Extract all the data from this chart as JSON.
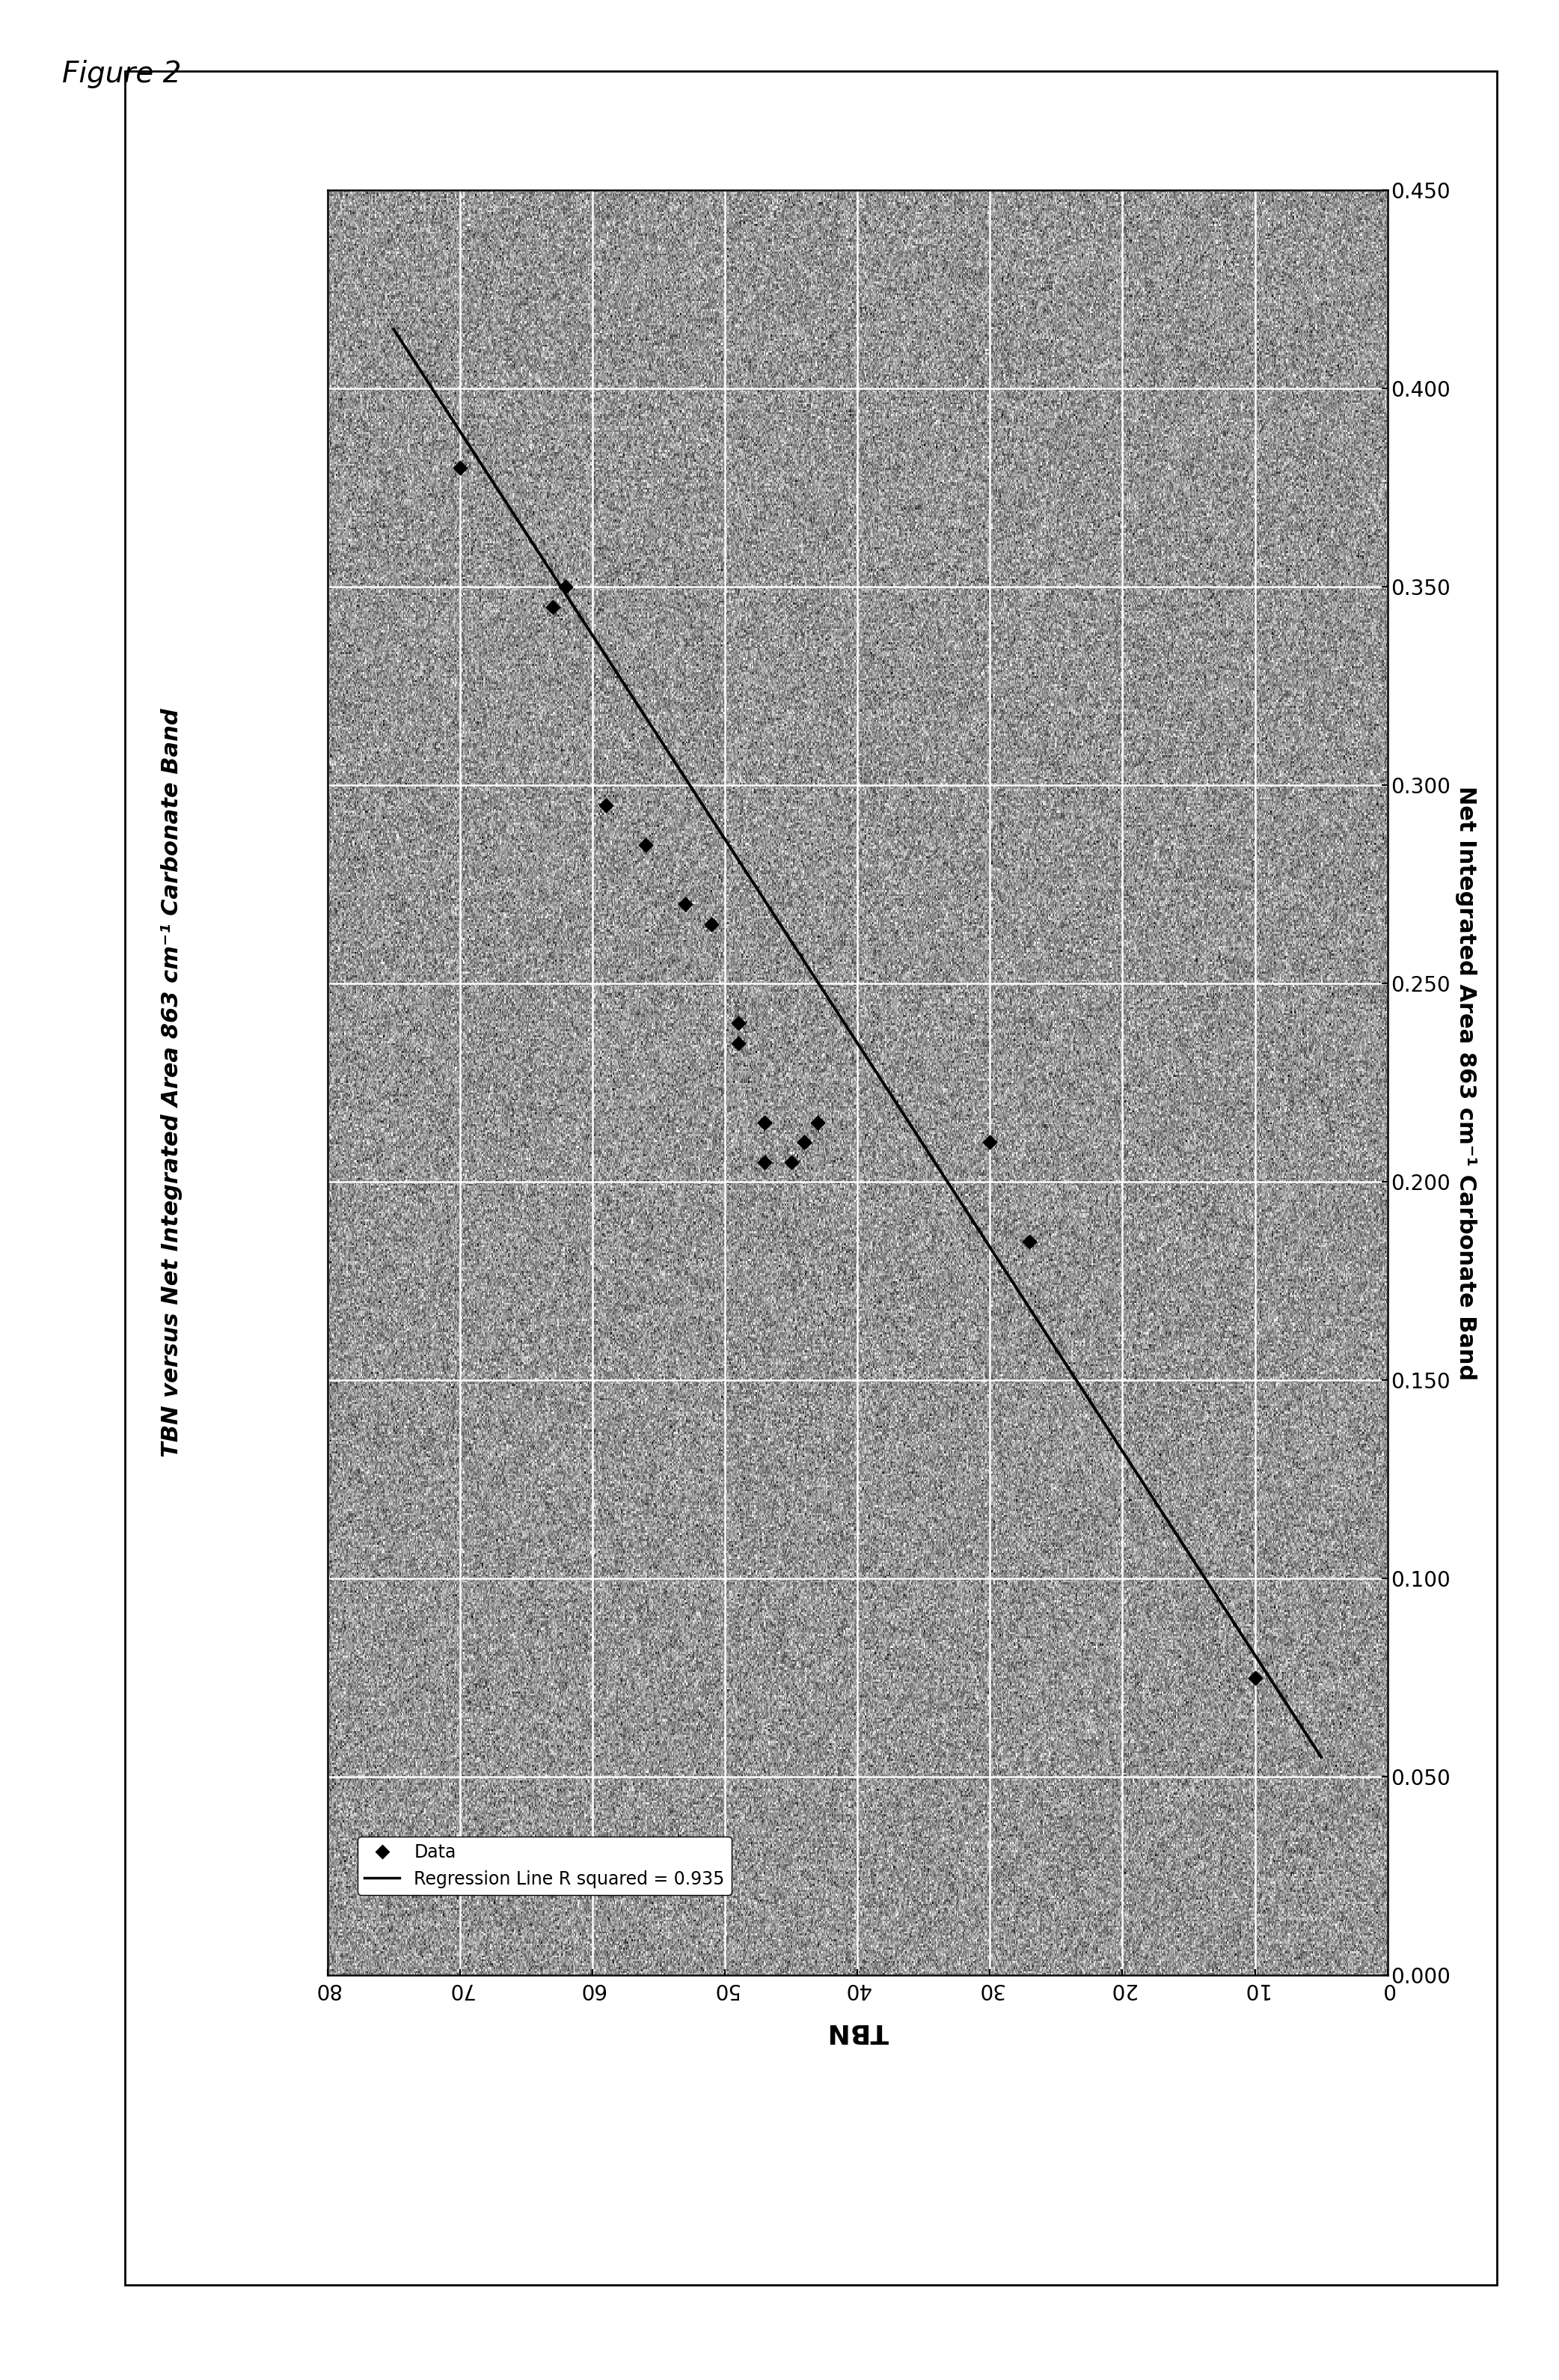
{
  "figure_label": "Figure 2",
  "chart_title": "TBN versus Net Integrated Area 863 cm⁻¹ Carbonate Band",
  "ylabel_right": "Net Integrated Area 863 cm⁻¹ Carbonate Band",
  "xlabel_bottom": "TBN",
  "data_tbn": [
    70,
    63,
    62,
    59,
    56,
    53,
    51,
    49,
    49,
    47,
    44,
    45,
    44,
    47,
    47,
    43,
    27,
    30,
    10
  ],
  "data_nia": [
    0.38,
    0.345,
    0.35,
    0.295,
    0.285,
    0.27,
    0.265,
    0.235,
    0.24,
    0.215,
    0.21,
    0.205,
    0.21,
    0.215,
    0.205,
    0.215,
    0.185,
    0.21,
    0.075
  ],
  "reg_tbn": [
    5,
    75
  ],
  "reg_nia": [
    0.055,
    0.415
  ],
  "tbn_ticks": [
    0,
    10,
    20,
    30,
    40,
    50,
    60,
    70,
    80
  ],
  "nia_ticks": [
    0.0,
    0.05,
    0.1,
    0.15,
    0.2,
    0.25,
    0.3,
    0.35,
    0.4,
    0.45
  ],
  "legend_data": "Data",
  "legend_reg": "Regression Line R squared = 0.935",
  "noise_seed": 42
}
